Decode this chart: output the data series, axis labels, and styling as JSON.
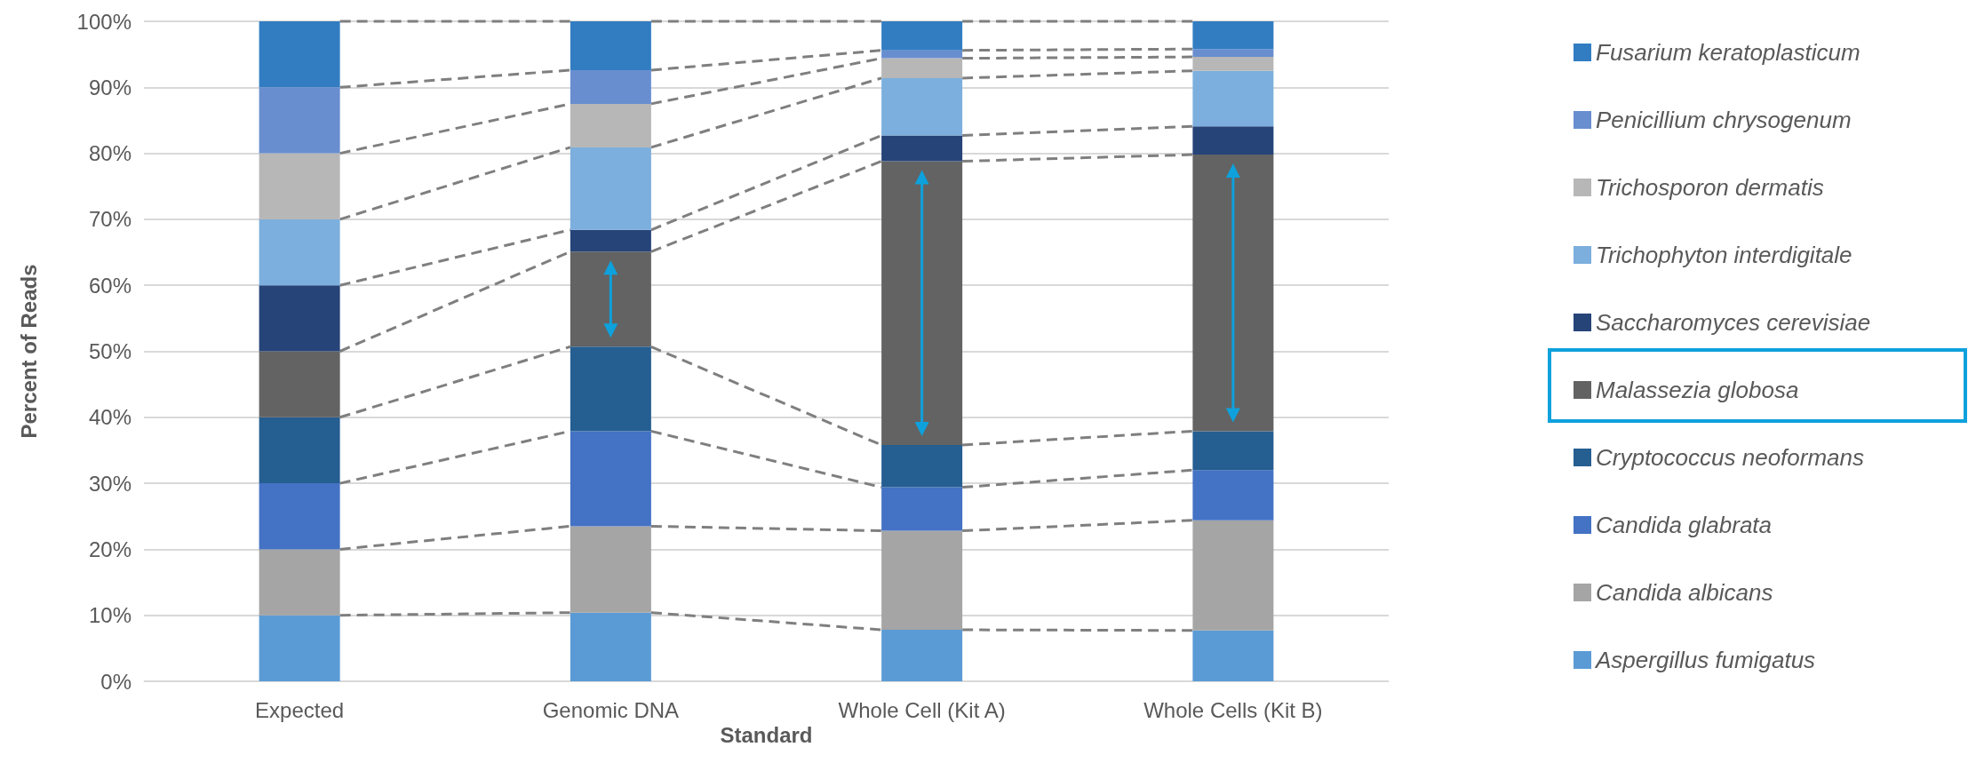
{
  "chart_data": {
    "type": "bar",
    "stacked": true,
    "xlabel": "Standard",
    "ylabel": "Percent of Reads",
    "categories": [
      "Expected",
      "Genomic DNA",
      "Whole Cell (Kit A)",
      "Whole Cells (Kit B)"
    ],
    "series": [
      {
        "name": "Aspergillus fumigatus",
        "color": "#5b9bd5",
        "values": [
          10,
          10.4,
          7.8,
          7.7
        ]
      },
      {
        "name": "Candida albicans",
        "color": "#a5a5a5",
        "values": [
          10,
          13.1,
          15.0,
          16.7
        ]
      },
      {
        "name": "Candida glabrata",
        "color": "#4472c4",
        "values": [
          10,
          14.4,
          6.6,
          7.6
        ]
      },
      {
        "name": "Cryptococcus neoformans",
        "color": "#255e91",
        "values": [
          10,
          12.8,
          6.4,
          5.9
        ]
      },
      {
        "name": "Malassezia globosa",
        "color": "#636363",
        "values": [
          10,
          14.4,
          43.0,
          41.9
        ]
      },
      {
        "name": "Saccharomyces cerevisiae",
        "color": "#264478",
        "values": [
          10,
          3.3,
          3.9,
          4.3
        ]
      },
      {
        "name": "Trichophyton interdigitale",
        "color": "#7cafdd",
        "values": [
          10,
          12.5,
          8.7,
          8.4
        ]
      },
      {
        "name": "Trichosporon dermatis",
        "color": "#b7b7b7",
        "values": [
          10,
          6.6,
          3.0,
          2.1
        ]
      },
      {
        "name": "Penicillium chrysogenum",
        "color": "#698ed0",
        "values": [
          10,
          5.1,
          1.2,
          1.2
        ]
      },
      {
        "name": "Fusarium keratoplasticum",
        "color": "#327dc2",
        "values": [
          10,
          7.4,
          4.4,
          4.2
        ]
      }
    ],
    "ylim": [
      0,
      100
    ],
    "yticks": [
      {
        "value": 0,
        "label": "0%"
      },
      {
        "value": 10,
        "label": "10%"
      },
      {
        "value": 20,
        "label": "20%"
      },
      {
        "value": 30,
        "label": "30%"
      },
      {
        "value": 40,
        "label": "40%"
      },
      {
        "value": 50,
        "label": "50%"
      },
      {
        "value": 60,
        "label": "60%"
      },
      {
        "value": 70,
        "label": "70%"
      },
      {
        "value": 80,
        "label": "80%"
      },
      {
        "value": 90,
        "label": "90%"
      },
      {
        "value": 100,
        "label": "100%"
      }
    ],
    "grid": "y",
    "legend": "right"
  }
}
